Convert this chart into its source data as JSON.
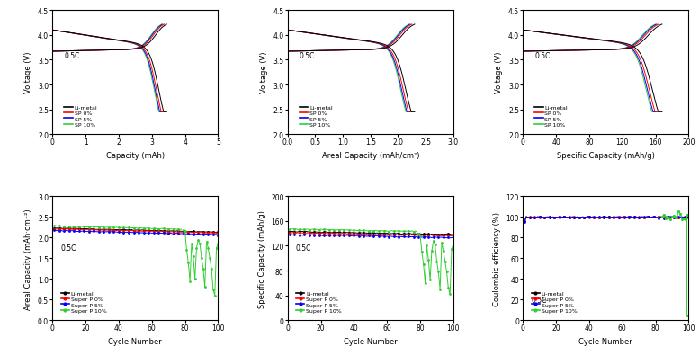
{
  "top_plots": [
    {
      "xlabel": "Capacity (mAh)",
      "ylabel": "Voltage (V)",
      "xlim": [
        0,
        5
      ],
      "ylim": [
        2.0,
        4.5
      ],
      "xticks": [
        0,
        1,
        2,
        3,
        4,
        5
      ],
      "yticks": [
        2.0,
        2.5,
        3.0,
        3.5,
        4.0,
        4.5
      ],
      "x_cap": 3.3,
      "x_cap_spread": 0.15
    },
    {
      "xlabel": "Areal Capacity (mAh/cm²)",
      "ylabel": "Voltage (V)",
      "xlim": [
        0.0,
        3.0
      ],
      "ylim": [
        2.0,
        4.5
      ],
      "xticks": [
        0.0,
        0.5,
        1.0,
        1.5,
        2.0,
        2.5,
        3.0
      ],
      "yticks": [
        2.0,
        2.5,
        3.0,
        3.5,
        4.0,
        4.5
      ],
      "x_cap": 2.2,
      "x_cap_spread": 0.1
    },
    {
      "xlabel": "Specific Capacity (mAh/g)",
      "ylabel": "Voltage (V)",
      "xlim": [
        0,
        200
      ],
      "ylim": [
        2.0,
        4.5
      ],
      "xticks": [
        0,
        40,
        80,
        120,
        160,
        200
      ],
      "yticks": [
        2.0,
        2.5,
        3.0,
        3.5,
        4.0,
        4.5
      ],
      "x_cap": 160,
      "x_cap_spread": 8.0
    }
  ],
  "bottom_plots": [
    {
      "xlabel": "Cycle Number",
      "ylabel": "Areal Capacity (mAh·cm⁻²)",
      "xlim": [
        0,
        100
      ],
      "ylim": [
        0.0,
        3.0
      ],
      "xticks": [
        0,
        20,
        40,
        60,
        80,
        100
      ],
      "yticks": [
        0.0,
        0.5,
        1.0,
        1.5,
        2.0,
        2.5,
        3.0
      ]
    },
    {
      "xlabel": "Cycle Number",
      "ylabel": "Specific Capacity (mAh/g)",
      "xlim": [
        0,
        100
      ],
      "ylim": [
        0,
        200
      ],
      "xticks": [
        0,
        20,
        40,
        60,
        80,
        100
      ],
      "yticks": [
        0,
        40,
        80,
        120,
        160,
        200
      ]
    },
    {
      "xlabel": "Cycle Number",
      "ylabel": "Coulombic efficiency (%)",
      "xlim": [
        0,
        100
      ],
      "ylim": [
        0,
        120
      ],
      "xticks": [
        0,
        20,
        40,
        60,
        80,
        100
      ],
      "yticks": [
        0,
        20,
        40,
        60,
        80,
        100,
        120
      ]
    }
  ],
  "legend_top": [
    "Li-metal",
    "SP 0%",
    "SP 5%",
    "SP 10%"
  ],
  "legend_bottom": [
    "Li-metal",
    "Super P 0%",
    "Super P 5%",
    "Super P 10%"
  ],
  "colors": [
    "black",
    "red",
    "blue",
    "limegreen"
  ],
  "annotation": "0.5C",
  "init_caps_areal": [
    2.23,
    2.21,
    2.17,
    2.28
  ],
  "init_caps_spec": [
    143,
    141,
    138,
    147
  ],
  "green_fail_cycle": 78,
  "green_areal_fail": [
    2.18,
    2.15,
    1.7,
    1.4,
    0.95,
    1.85,
    1.55,
    1.0,
    1.75,
    1.95,
    1.85,
    1.5,
    1.25,
    0.8,
    1.9,
    1.75,
    1.5,
    1.25,
    0.75,
    0.6,
    1.75,
    1.85,
    1.9
  ],
  "green_spec_fail": [
    140,
    137,
    110,
    90,
    60,
    120,
    97,
    65,
    112,
    128,
    122,
    95,
    78,
    50,
    125,
    112,
    95,
    78,
    52,
    42,
    115,
    122,
    128
  ],
  "ce_green_start": 84,
  "ce_green_fail_val": 5
}
